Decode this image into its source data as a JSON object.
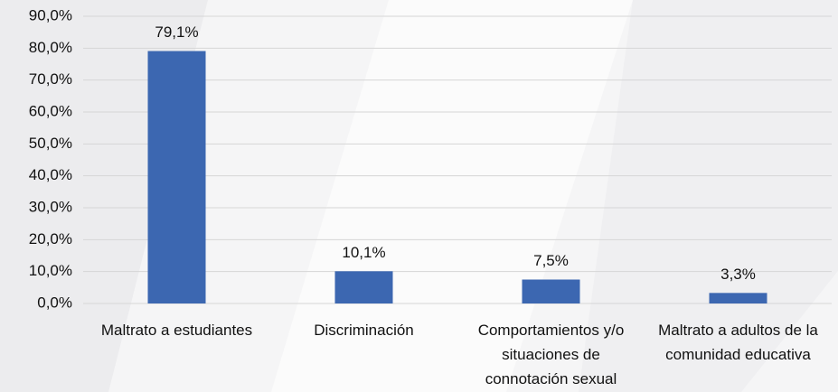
{
  "chart_data": {
    "type": "bar",
    "categories": [
      "Maltrato a estudiantes",
      "Discriminación",
      "Comportamientos y/o situaciones de connotación sexual",
      "Maltrato a adultos de la comunidad educativa"
    ],
    "values": [
      79.1,
      10.1,
      7.5,
      3.3
    ],
    "value_labels": [
      "79,1%",
      "10,1%",
      "7,5%",
      "3,3%"
    ],
    "color": "#3c67b1",
    "ylim": [
      0,
      90
    ],
    "yticks": [
      {
        "value": 0,
        "label": "0,0%"
      },
      {
        "value": 10,
        "label": "10,0%"
      },
      {
        "value": 20,
        "label": "20,0%"
      },
      {
        "value": 30,
        "label": "30,0%"
      },
      {
        "value": 40,
        "label": "40,0%"
      },
      {
        "value": 50,
        "label": "50,0%"
      },
      {
        "value": 60,
        "label": "60,0%"
      },
      {
        "value": 70,
        "label": "70,0%"
      },
      {
        "value": 80,
        "label": "80,0%"
      },
      {
        "value": 90,
        "label": "90,0%"
      }
    ],
    "grid": true
  }
}
